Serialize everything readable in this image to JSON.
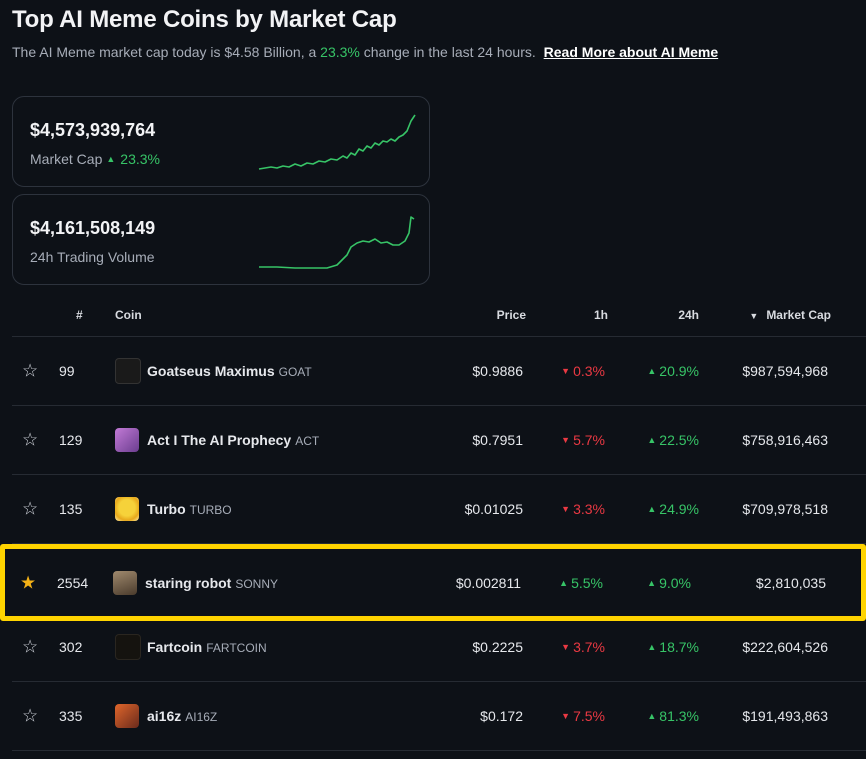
{
  "header": {
    "title": "Top AI Meme Coins by Market Cap",
    "subtitle_prefix": "The AI Meme market cap today is $4.58 Billion, a",
    "subtitle_change": "23.3%",
    "subtitle_suffix": "change in the last 24 hours.",
    "read_more": "Read More about AI Meme"
  },
  "stats": {
    "market_cap": {
      "value": "$4,573,939,764",
      "label": "Market Cap",
      "change": "23.3%"
    },
    "volume": {
      "value": "$4,161,508,149",
      "label": "24h Trading Volume"
    }
  },
  "table": {
    "headers": {
      "rank": "#",
      "coin": "Coin",
      "price": "Price",
      "h1": "1h",
      "h24": "24h",
      "mcap": "Market Cap"
    },
    "rows": [
      {
        "rank": "99",
        "name": "Goatseus Maximus",
        "symbol": "GOAT",
        "price": "$0.9886",
        "h1": "0.3%",
        "h24": "20.9%",
        "mcap": "$987,594,968"
      },
      {
        "rank": "129",
        "name": "Act I The AI Prophecy",
        "symbol": "ACT",
        "price": "$0.7951",
        "h1": "5.7%",
        "h24": "22.5%",
        "mcap": "$758,916,463"
      },
      {
        "rank": "135",
        "name": "Turbo",
        "symbol": "TURBO",
        "price": "$0.01025",
        "h1": "3.3%",
        "h24": "24.9%",
        "mcap": "$709,978,518"
      },
      {
        "rank": "2554",
        "name": "staring robot",
        "symbol": "SONNY",
        "price": "$0.002811",
        "h1": "5.5%",
        "h24": "9.0%",
        "mcap": "$2,810,035"
      },
      {
        "rank": "302",
        "name": "Fartcoin",
        "symbol": "FARTCOIN",
        "price": "$0.2225",
        "h1": "3.7%",
        "h24": "18.7%",
        "mcap": "$222,604,526"
      },
      {
        "rank": "335",
        "name": "ai16z",
        "symbol": "AI16Z",
        "price": "$0.172",
        "h1": "7.5%",
        "h24": "81.3%",
        "mcap": "$191,493,863"
      }
    ]
  },
  "colors": {
    "positive": "#37c467",
    "negative": "#ea3943",
    "highlight": "#ffd400",
    "favorite": "#f5b217"
  }
}
